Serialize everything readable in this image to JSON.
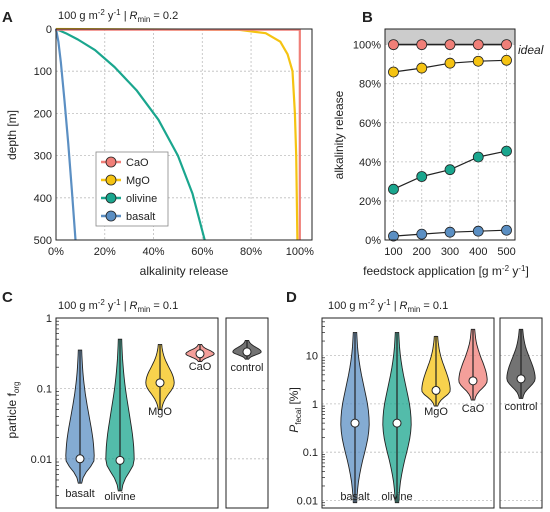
{
  "colors": {
    "CaO": "#f07f78",
    "MgO": "#f5c312",
    "olivine": "#1aa68e",
    "basalt": "#5b8fc3",
    "control": "#444444",
    "ideal_band": "#cccccc"
  },
  "panel_a": {
    "letter": "A",
    "subtitle_prefix": "100 g m",
    "subtitle_exp1": "-2",
    "subtitle_mid": " y",
    "subtitle_exp2": "-1",
    "subtitle_r": " | R",
    "subtitle_r_sub": "min",
    "subtitle_value": " = 0.2",
    "xlabel": "alkalinity release",
    "ylabel": "depth [m]",
    "legend": [
      "CaO",
      "MgO",
      "olivine",
      "basalt"
    ]
  },
  "panel_b": {
    "letter": "B",
    "xlabel_prefix": "feedstock application [g m",
    "xlabel_exp1": "-2",
    "xlabel_mid": " y",
    "xlabel_exp2": "-1",
    "xlabel_suffix": "]",
    "ylabel": "alkalinity release",
    "ideal_label": "ideal"
  },
  "panel_c": {
    "letter": "C",
    "subtitle_value": " = 0.1",
    "ylabel_prefix": "particle f",
    "ylabel_sub": "org",
    "labels": [
      "basalt",
      "olivine",
      "MgO",
      "CaO",
      "control"
    ]
  },
  "panel_d": {
    "letter": "D",
    "subtitle_value": " = 0.1",
    "ylabel_prefix": "P",
    "ylabel_sub": "fecal",
    "ylabel_suffix": " [%]",
    "labels": [
      "basalt",
      "olivine",
      "MgO",
      "CaO",
      "control"
    ]
  },
  "chart_data": [
    {
      "type": "line",
      "panel": "A",
      "title": "100 g m-2 y-1 | Rmin = 0.2",
      "xlabel": "alkalinity release",
      "ylabel": "depth [m]",
      "xlim": [
        0,
        1.05
      ],
      "ylim": [
        500,
        0
      ],
      "xticks": [
        "0%",
        "20%",
        "40%",
        "60%",
        "80%",
        "100%"
      ],
      "yticks": [
        0,
        100,
        200,
        300,
        400,
        500
      ],
      "grid": true,
      "legend": "center-left",
      "series": [
        {
          "name": "CaO",
          "x": [
            0,
            1.0,
            1.0,
            1.0
          ],
          "y": [
            0,
            1,
            250,
            500
          ]
        },
        {
          "name": "MgO",
          "x": [
            0,
            0.75,
            0.86,
            0.92,
            0.95,
            0.97,
            0.98,
            0.985,
            0.99
          ],
          "y": [
            0,
            2,
            10,
            30,
            60,
            100,
            200,
            300,
            500
          ]
        },
        {
          "name": "olivine",
          "x": [
            0,
            0.04,
            0.09,
            0.16,
            0.24,
            0.33,
            0.42,
            0.5,
            0.56,
            0.61
          ],
          "y": [
            0,
            10,
            25,
            50,
            90,
            145,
            215,
            300,
            390,
            500
          ]
        },
        {
          "name": "basalt",
          "x": [
            0,
            0.01,
            0.02,
            0.035,
            0.05,
            0.065,
            0.08
          ],
          "y": [
            0,
            30,
            80,
            170,
            270,
            380,
            500
          ]
        }
      ]
    },
    {
      "type": "line",
      "panel": "B",
      "xlabel": "feedstock application [g m-2 y-1]",
      "ylabel": "alkalinity release",
      "x": [
        100,
        200,
        300,
        400,
        500
      ],
      "xlim": [
        70,
        530
      ],
      "ylim": [
        0,
        1.08
      ],
      "yticks": [
        "0%",
        "20%",
        "40%",
        "60%",
        "80%",
        "100%"
      ],
      "grid": true,
      "annotation": "ideal",
      "series": [
        {
          "name": "CaO",
          "values": [
            1.0,
            1.0,
            1.0,
            1.0,
            1.0
          ]
        },
        {
          "name": "MgO",
          "values": [
            0.86,
            0.88,
            0.905,
            0.915,
            0.92
          ]
        },
        {
          "name": "olivine",
          "values": [
            0.26,
            0.325,
            0.36,
            0.425,
            0.455
          ]
        },
        {
          "name": "basalt",
          "values": [
            0.02,
            0.03,
            0.04,
            0.045,
            0.05
          ]
        }
      ]
    },
    {
      "type": "violin",
      "panel": "C",
      "title": "100 g m-2 y-1 | Rmin = 0.1",
      "ylabel": "particle f_org",
      "yscale": "log",
      "ylim": [
        0.002,
        1.0
      ],
      "yticks": [
        0.01,
        0.1,
        1.0
      ],
      "grid": true,
      "series": [
        {
          "name": "basalt",
          "median": 0.01,
          "min": 0.0045,
          "max": 0.35
        },
        {
          "name": "olivine",
          "median": 0.0095,
          "min": 0.0035,
          "max": 0.5
        },
        {
          "name": "MgO",
          "median": 0.12,
          "min": 0.05,
          "max": 0.42
        },
        {
          "name": "CaO",
          "median": 0.31,
          "min": 0.24,
          "max": 0.42
        },
        {
          "name": "control",
          "median": 0.33,
          "min": 0.26,
          "max": 0.48
        }
      ]
    },
    {
      "type": "violin",
      "panel": "D",
      "title": "100 g m-2 y-1 | Rmin = 0.1",
      "ylabel": "P_fecal [%]",
      "yscale": "log",
      "ylim": [
        0.007,
        60
      ],
      "yticks": [
        0.01,
        0.1,
        1,
        10
      ],
      "grid": true,
      "series": [
        {
          "name": "basalt",
          "median": 0.4,
          "min": 0.009,
          "max": 30
        },
        {
          "name": "olivine",
          "median": 0.4,
          "min": 0.009,
          "max": 30
        },
        {
          "name": "MgO",
          "median": 1.9,
          "min": 0.9,
          "max": 25
        },
        {
          "name": "CaO",
          "median": 3.0,
          "min": 1.2,
          "max": 35
        },
        {
          "name": "control",
          "median": 3.3,
          "min": 1.3,
          "max": 35
        }
      ]
    }
  ]
}
